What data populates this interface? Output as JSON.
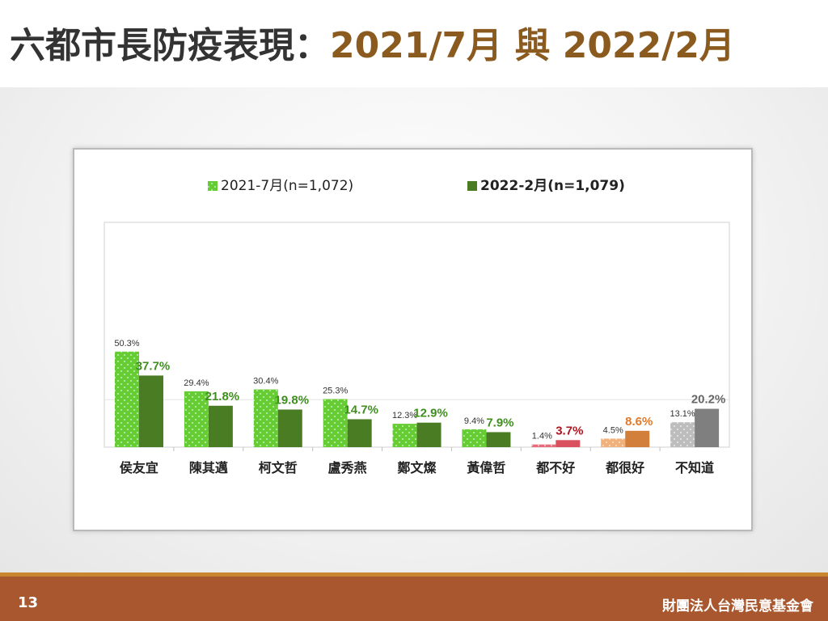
{
  "title": {
    "main": "六都市長防疫表現",
    "separator": "：",
    "accent": "2021/7月 與 2022/2月"
  },
  "footer": {
    "page_number": "13",
    "organization": "財團法人台灣民意基金會"
  },
  "colors": {
    "title_accent": "#8a5a1e",
    "footer_band": "#a8572e",
    "footer_stripe": "#c9862e",
    "series1_mayors": "#66cc33",
    "series2_mayors": "#4a7d23",
    "series1_all_bad": "#e86a78",
    "series2_all_bad": "#d9505f",
    "series1_all_good": "#f2b07a",
    "series2_all_good": "#d27f3c",
    "series1_unknown": "#bdbdbd",
    "series2_unknown": "#7f7f7f",
    "label_series2_mayors": "#3f8f1f",
    "label_series2_all_bad": "#b0141e",
    "label_series2_all_good": "#e07a2b",
    "label_series2_unknown": "#666666"
  },
  "chart_data": {
    "type": "bar",
    "categories": [
      "侯友宜",
      "陳其邁",
      "柯文哲",
      "盧秀燕",
      "鄭文燦",
      "黃偉哲",
      "都不好",
      "都很好",
      "不知道"
    ],
    "series": [
      {
        "name": "2021-7月(n=1,072)",
        "values": [
          50.3,
          29.4,
          30.4,
          25.3,
          12.3,
          9.4,
          1.4,
          4.5,
          13.1
        ]
      },
      {
        "name": "2022-2月(n=1,079)",
        "values": [
          37.7,
          21.8,
          19.8,
          14.7,
          12.9,
          7.9,
          3.7,
          8.6,
          20.2
        ]
      }
    ],
    "value_suffix": "%",
    "ylim": [
      0,
      50
    ],
    "gridlines": [
      25
    ],
    "legend_position": "top",
    "title": "",
    "xlabel": "",
    "ylabel": ""
  }
}
